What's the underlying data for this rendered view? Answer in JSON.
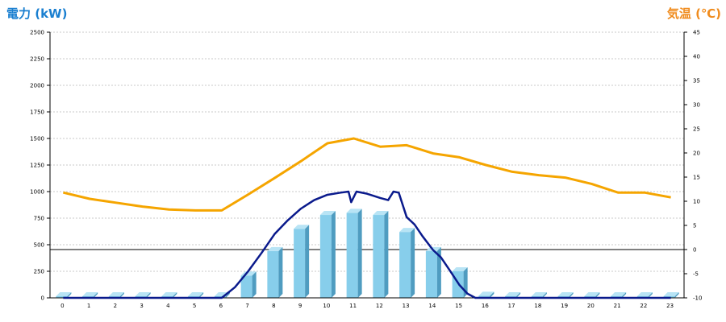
{
  "chart_data": {
    "type": "bar",
    "left_axis_title": "電力 (kW)",
    "right_axis_title": "気温 (℃)",
    "categories": [
      "0",
      "1",
      "2",
      "3",
      "4",
      "5",
      "6",
      "7",
      "8",
      "9",
      "10",
      "11",
      "12",
      "13",
      "14",
      "15",
      "16",
      "17",
      "18",
      "19",
      "20",
      "21",
      "22",
      "23"
    ],
    "y_left": {
      "min": 0,
      "max": 2500,
      "step": 250,
      "ticks": [
        "0",
        "250",
        "500",
        "750",
        "1000",
        "1250",
        "1500",
        "1750",
        "2000",
        "2250",
        "2500"
      ]
    },
    "y_right": {
      "min": -10,
      "max": 45,
      "step": 5,
      "ticks": [
        "-10",
        "-5",
        "0",
        "5",
        "10",
        "15",
        "20",
        "25",
        "30",
        "35",
        "40",
        "45"
      ]
    },
    "reference_line_temperature": 0,
    "grid": "horizontal dotted",
    "bars": {
      "axis": "left",
      "color": "#87ceeb",
      "values": [
        0,
        0,
        0,
        0,
        0,
        0,
        0,
        210,
        440,
        650,
        780,
        800,
        780,
        620,
        440,
        250,
        20,
        0,
        0,
        0,
        0,
        0,
        0,
        0
      ]
    },
    "power_line": {
      "axis": "left",
      "color": "#0a1a8c",
      "x": [
        0,
        6,
        6.5,
        7,
        7.5,
        8,
        8.5,
        9,
        9.5,
        10,
        10.5,
        10.8,
        10.9,
        11.1,
        11.5,
        12,
        12.3,
        12.5,
        12.7,
        13,
        13.3,
        13.6,
        14,
        14.3,
        14.6,
        15,
        15.3,
        15.6,
        16,
        23
      ],
      "y": [
        0,
        0,
        100,
        250,
        420,
        600,
        730,
        840,
        920,
        970,
        990,
        1000,
        900,
        1000,
        980,
        940,
        920,
        1000,
        990,
        760,
        690,
        580,
        450,
        380,
        270,
        120,
        40,
        0,
        0,
        0
      ]
    },
    "temperature_line": {
      "axis": "right",
      "color": "#f5a500",
      "x": [
        0,
        1,
        2,
        3,
        4,
        5,
        6,
        7,
        8,
        9,
        10,
        11,
        12,
        13,
        14,
        15,
        16,
        17,
        18,
        19,
        20,
        21,
        22,
        23
      ],
      "y": [
        11.8,
        10.5,
        9.7,
        8.9,
        8.3,
        8.1,
        8.1,
        11.4,
        14.8,
        18.3,
        22,
        23,
        21.3,
        21.6,
        19.9,
        19.1,
        17.5,
        16.1,
        15.4,
        14.9,
        13.6,
        11.8,
        11.8,
        10.8
      ]
    }
  }
}
